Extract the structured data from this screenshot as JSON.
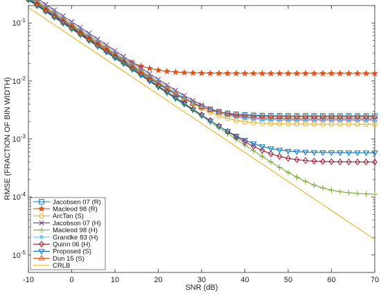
{
  "chart_data": {
    "type": "line",
    "xlabel": "SNR (dB)",
    "ylabel": "RMSE (FRACTION OF BIN WIDTH)",
    "xlim": [
      -10,
      70
    ],
    "ylim": [
      5e-06,
      0.2
    ],
    "y_scale": "log",
    "grid": false,
    "legend_position": "bottom-left",
    "x_ticks": [
      "-10",
      "0",
      "10",
      "20",
      "30",
      "40",
      "50",
      "60",
      "70"
    ],
    "y_ticks": [
      {
        "base": "10",
        "exp": "-5",
        "value": 1e-05
      },
      {
        "base": "10",
        "exp": "-4",
        "value": 0.0001
      },
      {
        "base": "10",
        "exp": "-3",
        "value": 0.001
      },
      {
        "base": "10",
        "exp": "-2",
        "value": 0.01
      },
      {
        "base": "10",
        "exp": "-1",
        "value": 0.1
      }
    ],
    "x": [
      -10,
      -8,
      -6,
      -4,
      -2,
      0,
      2,
      4,
      6,
      8,
      10,
      12,
      14,
      16,
      18,
      20,
      22,
      24,
      26,
      28,
      30,
      32,
      34,
      36,
      38,
      40,
      42,
      44,
      46,
      48,
      50,
      52,
      54,
      56,
      58,
      60,
      62,
      64,
      66,
      68,
      70
    ],
    "series": [
      {
        "name": "Jacobsen 07 (R)",
        "color": "#0072BD",
        "marker": "square",
        "floor": 0.0025,
        "offset": 1.1
      },
      {
        "name": "Macleod 98 (R)",
        "color": "#D95319",
        "marker": "star",
        "floor": 0.0135,
        "offset": 1.05
      },
      {
        "name": "ArcTan (S)",
        "color": "#EDB120",
        "marker": "circle",
        "floor": 0.0018,
        "offset": 1.2
      },
      {
        "name": "Jacobson 07 (H)",
        "color": "#7E2F8E",
        "marker": "x",
        "floor": 0.0022,
        "offset": 1.35
      },
      {
        "name": "Macleod 98 (H)",
        "color": "#77AC30",
        "marker": "plus",
        "floor": 0.00011,
        "offset": 1.0
      },
      {
        "name": "Grandke 83 (H)",
        "color": "#4DBEEE",
        "marker": "asterisk",
        "floor": 0.0021,
        "offset": 1.25
      },
      {
        "name": "Quinn 06 (H)",
        "color": "#A2142F",
        "marker": "diamond",
        "floor": 0.0004,
        "offset": 1.05
      },
      {
        "name": "Proposed (S)",
        "color": "#0072BD",
        "marker": "triangle-down",
        "floor": 0.00058,
        "offset": 1.02
      },
      {
        "name": "Dun 15 (S)",
        "color": "#D95319",
        "marker": "triangle-up",
        "floor": 0.0024,
        "offset": 1.15
      },
      {
        "name": "CRLB",
        "color": "#EDB120",
        "marker": "none",
        "floor": 0,
        "offset": 0.75
      }
    ]
  }
}
